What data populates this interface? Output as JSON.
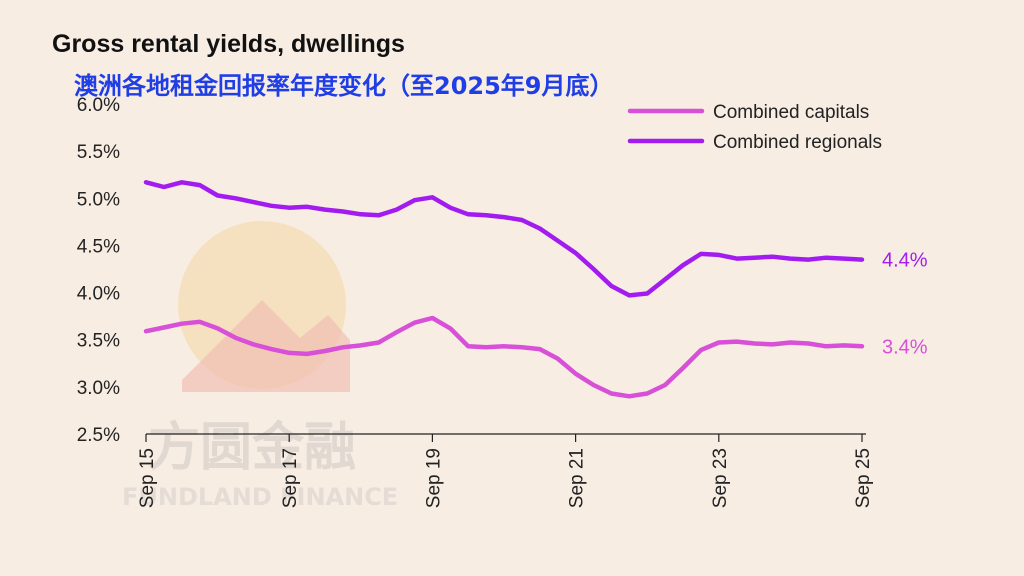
{
  "watermark": {
    "cn": "方圆金融",
    "en": "FUNDLAND FINANCE",
    "colors": {
      "gold": "#f3c56e",
      "red": "#ec9a8c",
      "text": "#9a9a9a"
    }
  },
  "chart_data": {
    "type": "line",
    "title": "Gross rental yields, dwellings",
    "subtitle": "澳洲各地租金回报率年度变化（至2025年9月底）",
    "subtitle_color": "#1f3ee6",
    "xlabel": "",
    "ylabel": "",
    "x_ticks": [
      "Sep 15",
      "Sep 17",
      "Sep 19",
      "Sep 21",
      "Sep 23",
      "Sep 25"
    ],
    "y_ticks": [
      "2.5%",
      "3.0%",
      "3.5%",
      "4.0%",
      "4.5%",
      "5.0%",
      "5.5%",
      "6.0%"
    ],
    "ylim": [
      2.5,
      6.0
    ],
    "xlim": [
      "2015-09",
      "2025-09"
    ],
    "grid": false,
    "legend_position": "top-right",
    "series": [
      {
        "name": "Combined capitals",
        "color": "#d84fd8",
        "end_label": "3.4%",
        "points": [
          [
            "2015-09",
            3.59
          ],
          [
            "2015-12",
            3.63
          ],
          [
            "2016-03",
            3.67
          ],
          [
            "2016-06",
            3.69
          ],
          [
            "2016-09",
            3.62
          ],
          [
            "2016-12",
            3.52
          ],
          [
            "2017-03",
            3.45
          ],
          [
            "2017-06",
            3.4
          ],
          [
            "2017-09",
            3.36
          ],
          [
            "2017-12",
            3.35
          ],
          [
            "2018-03",
            3.38
          ],
          [
            "2018-06",
            3.42
          ],
          [
            "2018-09",
            3.44
          ],
          [
            "2018-12",
            3.47
          ],
          [
            "2019-03",
            3.58
          ],
          [
            "2019-06",
            3.68
          ],
          [
            "2019-09",
            3.73
          ],
          [
            "2019-12",
            3.62
          ],
          [
            "2020-03",
            3.43
          ],
          [
            "2020-06",
            3.42
          ],
          [
            "2020-09",
            3.43
          ],
          [
            "2020-12",
            3.42
          ],
          [
            "2021-03",
            3.4
          ],
          [
            "2021-06",
            3.3
          ],
          [
            "2021-09",
            3.14
          ],
          [
            "2021-12",
            3.02
          ],
          [
            "2022-03",
            2.93
          ],
          [
            "2022-06",
            2.9
          ],
          [
            "2022-09",
            2.93
          ],
          [
            "2022-12",
            3.02
          ],
          [
            "2023-03",
            3.2
          ],
          [
            "2023-06",
            3.39
          ],
          [
            "2023-09",
            3.47
          ],
          [
            "2023-12",
            3.48
          ],
          [
            "2024-03",
            3.46
          ],
          [
            "2024-06",
            3.45
          ],
          [
            "2024-09",
            3.47
          ],
          [
            "2024-12",
            3.46
          ],
          [
            "2025-03",
            3.43
          ],
          [
            "2025-06",
            3.44
          ],
          [
            "2025-09",
            3.43
          ]
        ]
      },
      {
        "name": "Combined regionals",
        "color": "#a21cf0",
        "end_label": "4.4%",
        "points": [
          [
            "2015-09",
            5.17
          ],
          [
            "2015-12",
            5.12
          ],
          [
            "2016-03",
            5.17
          ],
          [
            "2016-06",
            5.14
          ],
          [
            "2016-09",
            5.03
          ],
          [
            "2016-12",
            5.0
          ],
          [
            "2017-03",
            4.96
          ],
          [
            "2017-06",
            4.92
          ],
          [
            "2017-09",
            4.9
          ],
          [
            "2017-12",
            4.91
          ],
          [
            "2018-03",
            4.88
          ],
          [
            "2018-06",
            4.86
          ],
          [
            "2018-09",
            4.83
          ],
          [
            "2018-12",
            4.82
          ],
          [
            "2019-03",
            4.88
          ],
          [
            "2019-06",
            4.98
          ],
          [
            "2019-09",
            5.01
          ],
          [
            "2019-12",
            4.9
          ],
          [
            "2020-03",
            4.83
          ],
          [
            "2020-06",
            4.82
          ],
          [
            "2020-09",
            4.8
          ],
          [
            "2020-12",
            4.77
          ],
          [
            "2021-03",
            4.68
          ],
          [
            "2021-06",
            4.55
          ],
          [
            "2021-09",
            4.42
          ],
          [
            "2021-12",
            4.25
          ],
          [
            "2022-03",
            4.07
          ],
          [
            "2022-06",
            3.97
          ],
          [
            "2022-09",
            3.99
          ],
          [
            "2022-12",
            4.14
          ],
          [
            "2023-03",
            4.29
          ],
          [
            "2023-06",
            4.41
          ],
          [
            "2023-09",
            4.4
          ],
          [
            "2023-12",
            4.36
          ],
          [
            "2024-03",
            4.37
          ],
          [
            "2024-06",
            4.38
          ],
          [
            "2024-09",
            4.36
          ],
          [
            "2024-12",
            4.35
          ],
          [
            "2025-03",
            4.37
          ],
          [
            "2025-06",
            4.36
          ],
          [
            "2025-09",
            4.35
          ]
        ]
      }
    ]
  }
}
